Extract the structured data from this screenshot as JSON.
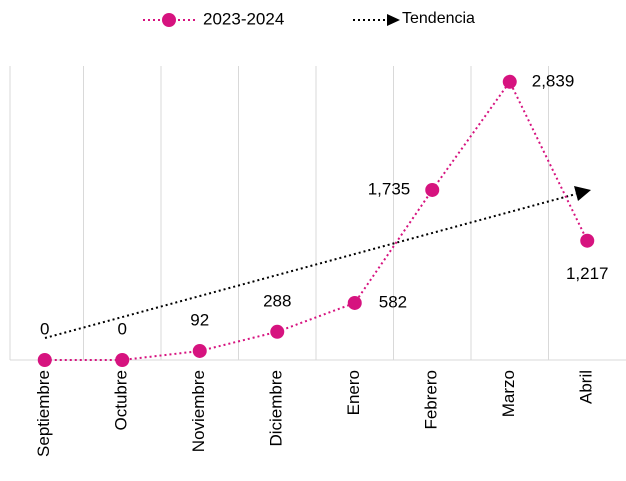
{
  "chart_data": {
    "type": "line",
    "categories": [
      "Septiembre",
      "Octubre",
      "Noviembre",
      "Diciembre",
      "Enero",
      "Febrero",
      "Marzo",
      "Abril"
    ],
    "series": [
      {
        "name": "2023-2024",
        "color": "#d6137f",
        "values": [
          0,
          0,
          92,
          288,
          582,
          1735,
          2839,
          1217
        ],
        "value_labels": [
          "0",
          "0",
          "92",
          "288",
          "582",
          "1,735",
          "2,839",
          "1,217"
        ]
      }
    ],
    "trendline": {
      "name": "Tendencia",
      "color": "#000000"
    },
    "ylim": [
      0,
      3000
    ],
    "grid": true,
    "legend": "top"
  }
}
